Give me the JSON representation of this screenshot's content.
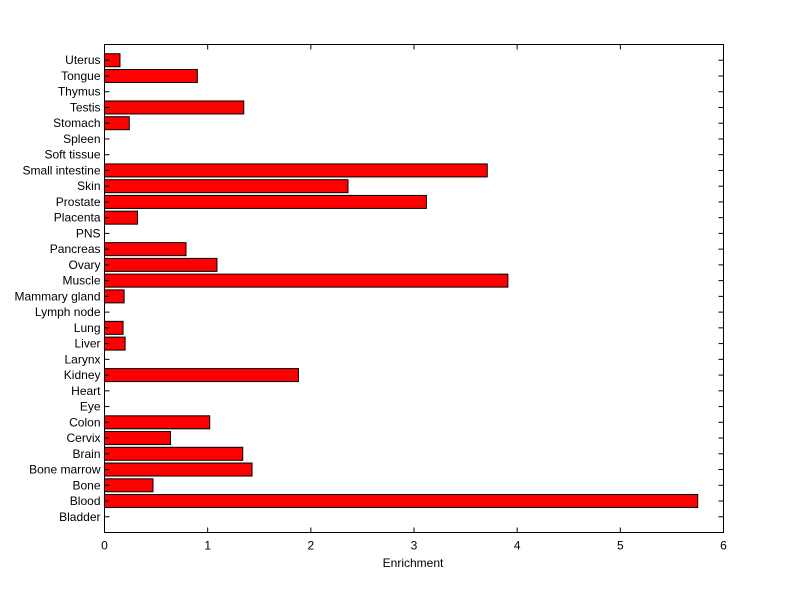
{
  "chart_data": {
    "type": "bar",
    "orientation": "horizontal",
    "title": "",
    "xlabel": "Enrichment",
    "ylabel": "",
    "xlim": [
      0,
      6
    ],
    "xticks": [
      0,
      1,
      2,
      3,
      4,
      5,
      6
    ],
    "grid": false,
    "bar_color": "#ff0000",
    "categories": [
      "Bladder",
      "Blood",
      "Bone",
      "Bone marrow",
      "Brain",
      "Cervix",
      "Colon",
      "Eye",
      "Heart",
      "Kidney",
      "Larynx",
      "Liver",
      "Lung",
      "Lymph node",
      "Mammary gland",
      "Muscle",
      "Ovary",
      "Pancreas",
      "PNS",
      "Placenta",
      "Prostate",
      "Skin",
      "Small intestine",
      "Soft tissue",
      "Spleen",
      "Stomach",
      "Testis",
      "Thymus",
      "Tongue",
      "Uterus"
    ],
    "values": [
      0,
      5.75,
      0.47,
      1.43,
      1.34,
      0.64,
      1.02,
      0,
      0,
      1.88,
      0,
      0.2,
      0.18,
      0,
      0.19,
      3.91,
      1.09,
      0.79,
      0,
      0.32,
      3.12,
      2.36,
      3.71,
      0,
      0,
      0.24,
      1.35,
      0,
      0.9,
      0.15
    ]
  }
}
